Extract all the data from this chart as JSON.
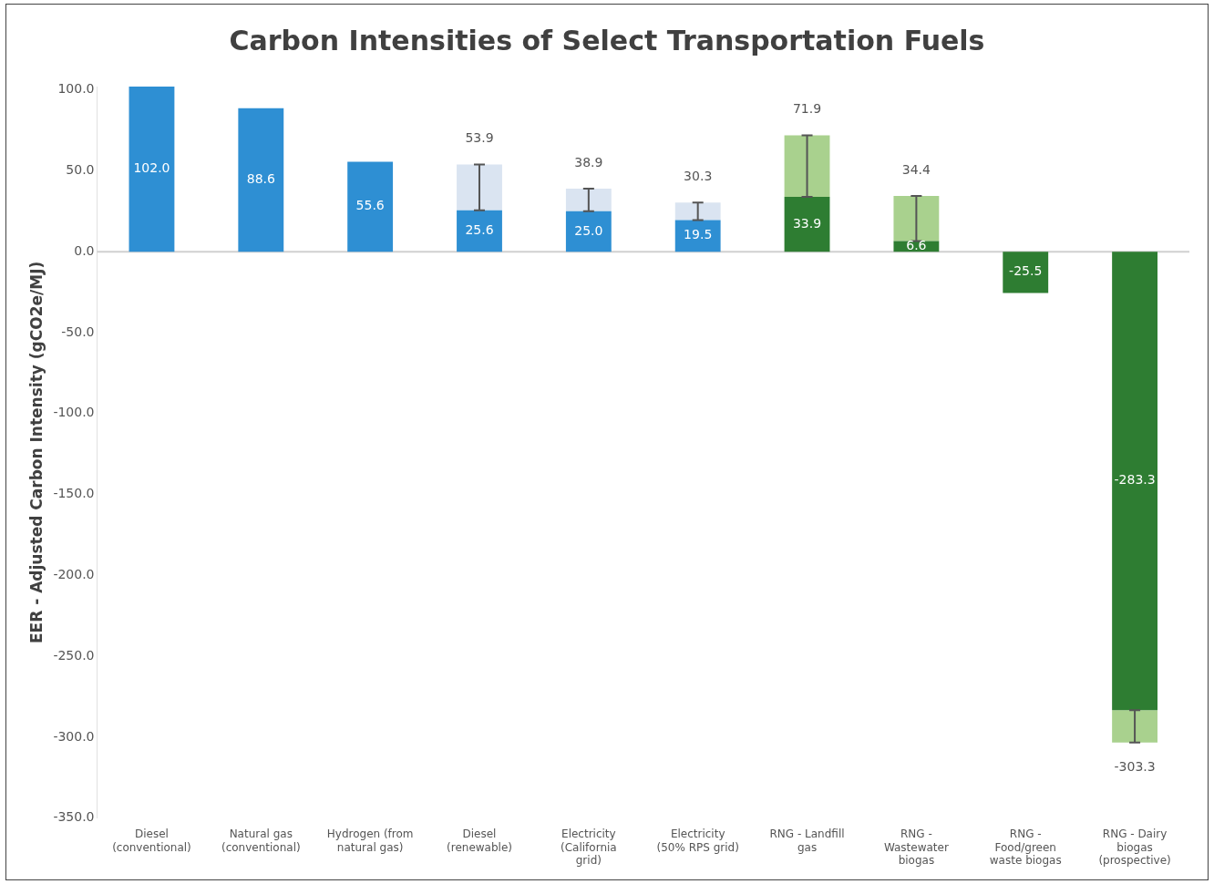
{
  "chart_data": {
    "type": "bar",
    "title": "Carbon Intensities of Select Transportation Fuels",
    "ylabel": "EER - Adjusted Carbon Intensity (gCO2e/MJ)",
    "categories": [
      "Diesel (conventional)",
      "Natural gas (conventional)",
      "Hydrogen (from natural gas)",
      "Diesel (renewable)",
      "Electricity (California grid)",
      "Electricity (50% RPS grid)",
      "RNG - Landfill gas",
      "RNG - Wastewater biogas",
      "RNG - Food/green waste biogas",
      "RNG - Dairy biogas (prospective)"
    ],
    "stacked": true,
    "ref_lines": [
      {
        "axis": "y",
        "value": 0,
        "color": "#d0d0d0"
      }
    ],
    "totals": [
      null,
      null,
      null,
      "53.9",
      "38.9",
      "30.3",
      "71.9",
      "34.4",
      null,
      "-303.3"
    ],
    "series": [
      {
        "colors": [
          "#2e8fd3",
          "#2e8fd3",
          "#2e8fd3",
          "#2e8fd3",
          "#2e8fd3",
          "#2e8fd3",
          "#2e7d32",
          "#2e7d32",
          "#2e7d32",
          "#2e7d32"
        ],
        "values": [
          102.0,
          88.6,
          55.6,
          25.6,
          25.0,
          19.5,
          33.9,
          6.6,
          -25.5,
          -283.3
        ],
        "value_labels": [
          "102.0",
          "88.6",
          "55.6",
          "25.6",
          "25.0",
          "19.5",
          "33.9",
          "6.6",
          "-25.5",
          "-283.3"
        ],
        "errors": [
          null,
          null,
          null,
          [
            25.6,
            53.9
          ],
          [
            25.0,
            38.9
          ],
          [
            19.5,
            30.3
          ],
          [
            33.9,
            71.9
          ],
          [
            6.6,
            34.4
          ],
          null,
          [
            -303.3,
            -283.3
          ]
        ]
      },
      {
        "colors": [
          null,
          null,
          null,
          "#dae4f1",
          "#dae4f1",
          "#dae4f1",
          "#a9d18e",
          "#a9d18e",
          null,
          "#a9d18e"
        ],
        "values": [
          null,
          null,
          null,
          28.3,
          13.9,
          10.8,
          38.0,
          27.8,
          null,
          -20.0
        ]
      }
    ],
    "ylim": [
      -350,
      102
    ],
    "yticks": [
      {
        "value": -350,
        "label": "-350.0"
      },
      {
        "value": -300,
        "label": "-300.0"
      },
      {
        "value": -250,
        "label": "-250.0"
      },
      {
        "value": -200,
        "label": "-200.0"
      },
      {
        "value": -150,
        "label": "-150.0"
      },
      {
        "value": -100,
        "label": "-100.0"
      },
      {
        "value": -50,
        "label": "-50.0"
      },
      {
        "value": 0,
        "label": "0.0"
      },
      {
        "value": 50,
        "label": "50.0"
      },
      {
        "value": 100,
        "label": "100.0"
      }
    ],
    "grid": false,
    "legend": false
  }
}
